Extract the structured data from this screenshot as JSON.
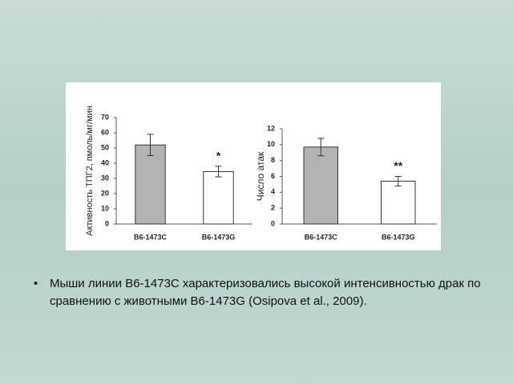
{
  "chart_data": [
    {
      "type": "bar",
      "ylabel": "Активность ТПГ2, пмоль/мг/мин",
      "categories": [
        "B6-1473C",
        "B6-1473G"
      ],
      "values": [
        52,
        34.5
      ],
      "errors": [
        7,
        3.5
      ],
      "colors": [
        "#b3b3b3",
        "#ffffff"
      ],
      "ylim": [
        0,
        70
      ],
      "yticks": [
        0,
        10,
        20,
        30,
        40,
        50,
        60,
        70
      ],
      "annotations": [
        {
          "text": "*",
          "x": "B6-1473G"
        }
      ]
    },
    {
      "type": "bar",
      "ylabel": "Число атак",
      "categories": [
        "B6-1473C",
        "B6-1473G"
      ],
      "values": [
        9.7,
        5.4
      ],
      "errors": [
        1.1,
        0.6
      ],
      "colors": [
        "#b3b3b3",
        "#ffffff"
      ],
      "ylim": [
        0,
        12
      ],
      "yticks": [
        0,
        2,
        4,
        6,
        8,
        10,
        12
      ],
      "annotations": [
        {
          "text": "**",
          "x": "B6-1473G"
        }
      ]
    }
  ],
  "bullet": "Мыши линии B6-1473C характеризовались высокой интенсивностью драк по сравнению с животными B6-1473G  (Osipova et al., 2009)."
}
